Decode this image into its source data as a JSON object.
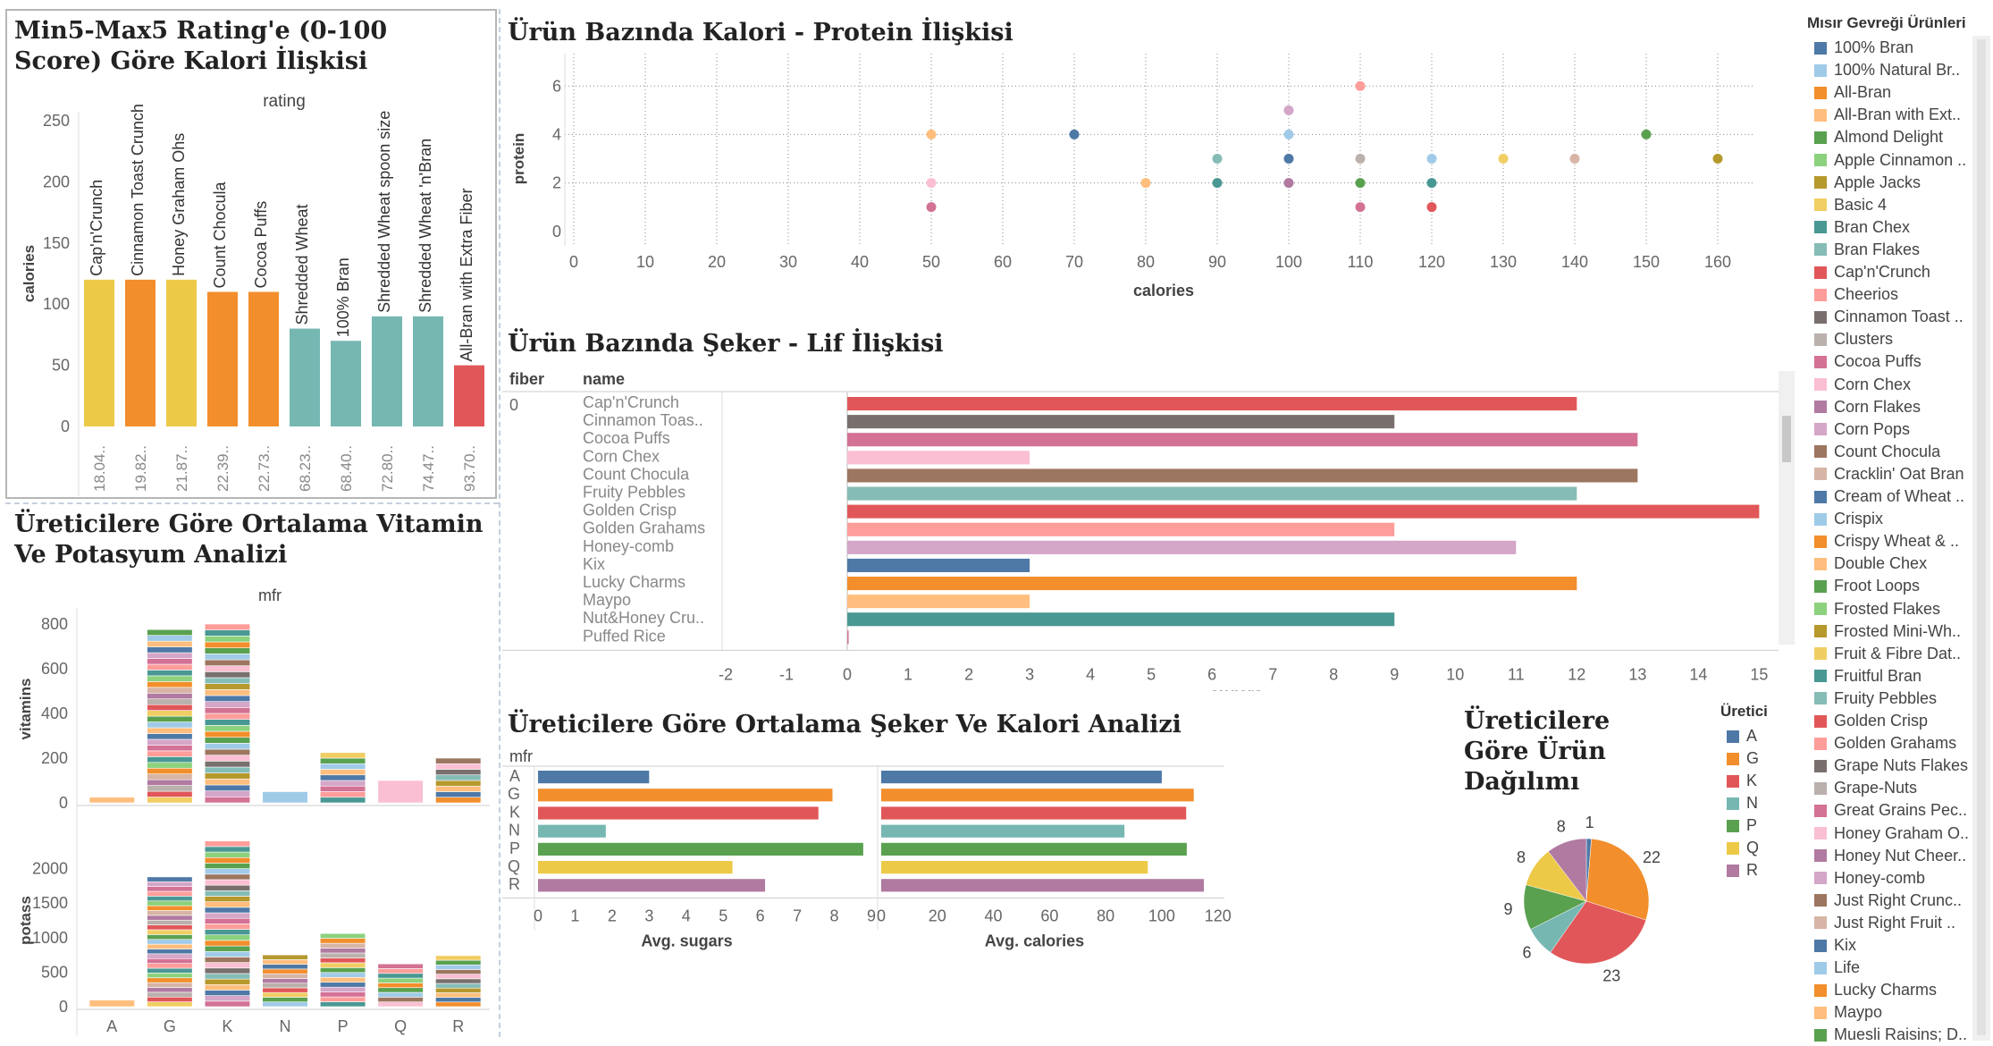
{
  "legend": {
    "title": "Mısır Gevreği Ürünleri",
    "items": [
      {
        "name": "100% Bran",
        "color": "#4e79a7"
      },
      {
        "name": "100% Natural Br..",
        "color": "#a0cbe8"
      },
      {
        "name": "All-Bran",
        "color": "#f28e2b"
      },
      {
        "name": "All-Bran with Ext..",
        "color": "#ffbe7d"
      },
      {
        "name": "Almond Delight",
        "color": "#59a14f"
      },
      {
        "name": "Apple Cinnamon ..",
        "color": "#8cd17d"
      },
      {
        "name": "Apple Jacks",
        "color": "#b6992d"
      },
      {
        "name": "Basic 4",
        "color": "#f1ce63"
      },
      {
        "name": "Bran Chex",
        "color": "#499894"
      },
      {
        "name": "Bran Flakes",
        "color": "#86bcb6"
      },
      {
        "name": "Cap'n'Crunch",
        "color": "#e15759"
      },
      {
        "name": "Cheerios",
        "color": "#ff9d9a"
      },
      {
        "name": "Cinnamon Toast ..",
        "color": "#79706e"
      },
      {
        "name": "Clusters",
        "color": "#bab0ac"
      },
      {
        "name": "Cocoa Puffs",
        "color": "#d37295"
      },
      {
        "name": "Corn Chex",
        "color": "#fabfd2"
      },
      {
        "name": "Corn Flakes",
        "color": "#b07aa1"
      },
      {
        "name": "Corn Pops",
        "color": "#d4a6c8"
      },
      {
        "name": "Count Chocula",
        "color": "#9d7660"
      },
      {
        "name": "Cracklin' Oat Bran",
        "color": "#d7b5a6"
      },
      {
        "name": "Cream of Wheat ..",
        "color": "#4e79a7"
      },
      {
        "name": "Crispix",
        "color": "#a0cbe8"
      },
      {
        "name": "Crispy Wheat & ..",
        "color": "#f28e2b"
      },
      {
        "name": "Double Chex",
        "color": "#ffbe7d"
      },
      {
        "name": "Froot Loops",
        "color": "#59a14f"
      },
      {
        "name": "Frosted Flakes",
        "color": "#8cd17d"
      },
      {
        "name": "Frosted Mini-Wh..",
        "color": "#b6992d"
      },
      {
        "name": "Fruit & Fibre Dat..",
        "color": "#f1ce63"
      },
      {
        "name": "Fruitful Bran",
        "color": "#499894"
      },
      {
        "name": "Fruity Pebbles",
        "color": "#86bcb6"
      },
      {
        "name": "Golden Crisp",
        "color": "#e15759"
      },
      {
        "name": "Golden Grahams",
        "color": "#ff9d9a"
      },
      {
        "name": "Grape Nuts Flakes",
        "color": "#79706e"
      },
      {
        "name": "Grape-Nuts",
        "color": "#bab0ac"
      },
      {
        "name": "Great Grains Pec..",
        "color": "#d37295"
      },
      {
        "name": "Honey Graham O..",
        "color": "#fabfd2"
      },
      {
        "name": "Honey Nut Cheer..",
        "color": "#b07aa1"
      },
      {
        "name": "Honey-comb",
        "color": "#d4a6c8"
      },
      {
        "name": "Just Right Crunc..",
        "color": "#9d7660"
      },
      {
        "name": "Just Right Fruit ..",
        "color": "#d7b5a6"
      },
      {
        "name": "Kix",
        "color": "#4e79a7"
      },
      {
        "name": "Life",
        "color": "#a0cbe8"
      },
      {
        "name": "Lucky Charms",
        "color": "#f28e2b"
      },
      {
        "name": "Maypo",
        "color": "#ffbe7d"
      },
      {
        "name": "Muesli Raisins; D..",
        "color": "#59a14f"
      }
    ]
  },
  "mfr_legend": {
    "title": "Üretici",
    "items": [
      {
        "name": "A",
        "color": "#4e79a7"
      },
      {
        "name": "G",
        "color": "#f28e2b"
      },
      {
        "name": "K",
        "color": "#e15759"
      },
      {
        "name": "N",
        "color": "#76b7b2"
      },
      {
        "name": "P",
        "color": "#59a14f"
      },
      {
        "name": "Q",
        "color": "#edc948"
      },
      {
        "name": "R",
        "color": "#b07aa1"
      }
    ]
  },
  "chart_data": [
    {
      "id": "rating",
      "type": "bar",
      "title": "Min5-Max5 Rating'e (0-100 Score) Göre Kalori İlişkisi",
      "column_header": "rating",
      "ylabel": "calories",
      "ylim": [
        0,
        250
      ],
      "yticks": [
        0,
        50,
        100,
        150,
        200,
        250
      ],
      "categories": [
        "Cap'n'Crunch",
        "Cinnamon Toast Crunch",
        "Honey Graham Ohs",
        "Count Chocula",
        "Cocoa Puffs",
        "Shredded Wheat",
        "100% Bran",
        "Shredded Wheat spoon size",
        "Shredded Wheat 'n'Bran",
        "All-Bran with Extra Fiber"
      ],
      "rating_labels": [
        "18.04..",
        "19.82..",
        "21.87..",
        "22.39..",
        "22.73..",
        "68.23..",
        "68.40..",
        "72.80..",
        "74.47..",
        "93.70.."
      ],
      "values": [
        120,
        120,
        120,
        110,
        110,
        80,
        70,
        90,
        90,
        50
      ],
      "colors": [
        "#edc948",
        "#f28e2b",
        "#edc948",
        "#f28e2b",
        "#f28e2b",
        "#76b7b2",
        "#76b7b2",
        "#76b7b2",
        "#76b7b2",
        "#e15759"
      ]
    },
    {
      "id": "scatter",
      "type": "scatter",
      "title": "Ürün Bazında Kalori - Protein İlişkisi",
      "xlabel": "calories",
      "ylabel": "protein",
      "xlim": [
        0,
        165
      ],
      "ylim": [
        -0.6,
        6.6
      ],
      "xticks": [
        0,
        10,
        20,
        30,
        40,
        50,
        60,
        70,
        80,
        90,
        100,
        110,
        120,
        130,
        140,
        150,
        160
      ],
      "yticks": [
        0,
        2,
        4,
        6
      ],
      "points": [
        {
          "x": 50,
          "y": 4,
          "c": "#ffbe7d"
        },
        {
          "x": 50,
          "y": 2,
          "c": "#fabfd2"
        },
        {
          "x": 50,
          "y": 1,
          "c": "#d37295"
        },
        {
          "x": 70,
          "y": 4,
          "c": "#4e79a7"
        },
        {
          "x": 80,
          "y": 2,
          "c": "#ffbe7d"
        },
        {
          "x": 90,
          "y": 3,
          "c": "#86bcb6"
        },
        {
          "x": 90,
          "y": 2,
          "c": "#499894"
        },
        {
          "x": 100,
          "y": 5,
          "c": "#d4a6c8"
        },
        {
          "x": 100,
          "y": 4,
          "c": "#a0cbe8"
        },
        {
          "x": 100,
          "y": 3,
          "c": "#4e79a7"
        },
        {
          "x": 100,
          "y": 2,
          "c": "#b07aa1"
        },
        {
          "x": 110,
          "y": 6,
          "c": "#ff9d9a"
        },
        {
          "x": 110,
          "y": 3,
          "c": "#bab0ac"
        },
        {
          "x": 110,
          "y": 2,
          "c": "#59a14f"
        },
        {
          "x": 110,
          "y": 1,
          "c": "#d37295"
        },
        {
          "x": 120,
          "y": 3,
          "c": "#a0cbe8"
        },
        {
          "x": 120,
          "y": 2,
          "c": "#499894"
        },
        {
          "x": 120,
          "y": 1,
          "c": "#e15759"
        },
        {
          "x": 130,
          "y": 3,
          "c": "#f1ce63"
        },
        {
          "x": 140,
          "y": 3,
          "c": "#d7b5a6"
        },
        {
          "x": 150,
          "y": 4,
          "c": "#59a14f"
        },
        {
          "x": 160,
          "y": 3,
          "c": "#b6992d"
        }
      ]
    },
    {
      "id": "sugar_fiber",
      "type": "bar",
      "title": "Ürün Bazında Şeker - Lif İlişkisi",
      "row_headers": [
        "fiber",
        "name"
      ],
      "fiber_value": "0",
      "xlabel": "sugars",
      "xlim": [
        -2,
        15.2
      ],
      "xticks": [
        -2,
        -1,
        0,
        1,
        2,
        3,
        4,
        5,
        6,
        7,
        8,
        9,
        10,
        11,
        12,
        13,
        14,
        15
      ],
      "categories": [
        "Cap'n'Crunch",
        "Cinnamon Toas..",
        "Cocoa Puffs",
        "Corn Chex",
        "Count Chocula",
        "Fruity Pebbles",
        "Golden Crisp",
        "Golden Grahams",
        "Honey-comb",
        "Kix",
        "Lucky Charms",
        "Maypo",
        "Nut&Honey Cru..",
        "Puffed Rice"
      ],
      "values": [
        12,
        9,
        13,
        3,
        13,
        12,
        15,
        9,
        11,
        3,
        12,
        3,
        9,
        0
      ],
      "colors": [
        "#e15759",
        "#79706e",
        "#d37295",
        "#fabfd2",
        "#9d7660",
        "#86bcb6",
        "#e15759",
        "#ff9d9a",
        "#d4a6c8",
        "#4e79a7",
        "#f28e2b",
        "#ffbe7d",
        "#499894",
        "#d37295"
      ]
    },
    {
      "id": "mfr_sugar_cal",
      "type": "bar",
      "title": "Üreticilere Göre Ortalama Şeker Ve Kalori Analizi",
      "row_header": "mfr",
      "categories": [
        "A",
        "G",
        "K",
        "N",
        "P",
        "Q",
        "R"
      ],
      "colors": [
        "#4e79a7",
        "#f28e2b",
        "#e15759",
        "#76b7b2",
        "#59a14f",
        "#edc948",
        "#b07aa1"
      ],
      "series": [
        {
          "name": "Avg. sugars",
          "values": [
            3.0,
            7.95,
            7.57,
            1.83,
            8.78,
            5.25,
            6.13
          ],
          "xlim": [
            0,
            9
          ],
          "xticks": [
            0,
            1,
            2,
            3,
            4,
            5,
            6,
            7,
            8,
            9
          ]
        },
        {
          "name": "Avg. calories",
          "values": [
            100,
            111.4,
            108.7,
            86.7,
            108.9,
            95,
            115
          ],
          "xlim": [
            0,
            122
          ],
          "xticks": [
            0,
            20,
            40,
            60,
            80,
            100,
            120
          ]
        }
      ]
    },
    {
      "id": "pie",
      "type": "pie",
      "title": "Üreticilere Göre Ürün Dağılımı",
      "labels": [
        "A",
        "G",
        "K",
        "N",
        "P",
        "Q",
        "R"
      ],
      "values": [
        1,
        22,
        23,
        6,
        9,
        8,
        8
      ],
      "colors": [
        "#4e79a7",
        "#f28e2b",
        "#e15759",
        "#76b7b2",
        "#59a14f",
        "#edc948",
        "#b07aa1"
      ]
    },
    {
      "id": "vit_pot",
      "type": "bar",
      "title": "Üreticilere Göre Ortalama Vitamin Ve Potasyum Analizi",
      "column_header": "mfr",
      "categories": [
        "A",
        "G",
        "K",
        "N",
        "P",
        "Q",
        "R"
      ],
      "series": [
        {
          "name": "vitamins",
          "ylim": [
            0,
            840
          ],
          "yticks": [
            0,
            200,
            400,
            600,
            800
          ],
          "totals": [
            25,
            775,
            800,
            50,
            225,
            100,
            200
          ]
        },
        {
          "name": "potass",
          "ylim": [
            0,
            2500
          ],
          "yticks": [
            0,
            500,
            1000,
            1500,
            2000
          ],
          "totals": [
            95,
            1880,
            2400,
            750,
            1060,
            620,
            740
          ]
        }
      ]
    }
  ]
}
